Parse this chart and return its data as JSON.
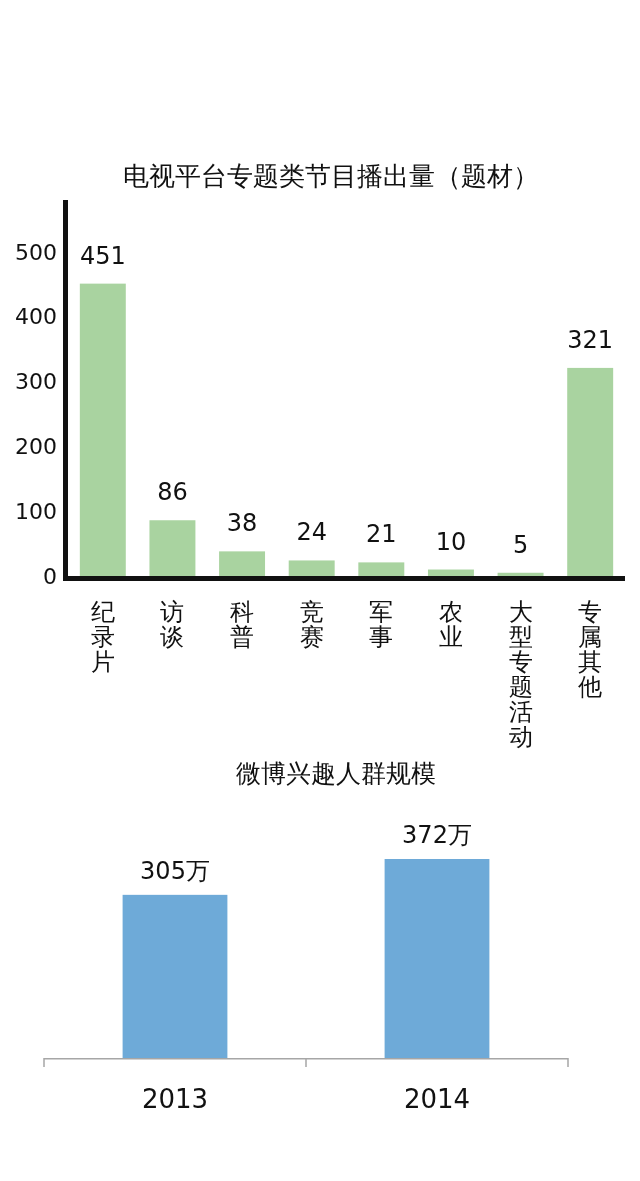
{
  "chart_data": [
    {
      "type": "bar",
      "title": "电视平台专题类节目播出量（题材）",
      "categories": [
        "纪录片",
        "访谈",
        "科普",
        "竞赛",
        "军事",
        "农业",
        "大型专题活动",
        "专属其他"
      ],
      "values": [
        451,
        86,
        38,
        24,
        21,
        10,
        5,
        321
      ],
      "color": "#a9d3a0",
      "ylim": [
        0,
        580
      ],
      "yticks": [
        0,
        100,
        200,
        300,
        400,
        500
      ],
      "data_labels": true
    },
    {
      "type": "bar",
      "title": "微博兴趣人群规模",
      "categories": [
        "2013",
        "2014"
      ],
      "values": [
        305,
        372
      ],
      "value_labels": [
        "305万",
        "372万"
      ],
      "color": "#6eaad8",
      "tick_labels": "x"
    }
  ]
}
